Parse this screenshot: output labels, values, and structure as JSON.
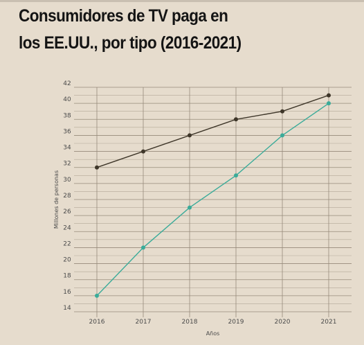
{
  "header": {
    "title_line1": "Consumidores de TV paga en",
    "title_line2": "los EE.UU., por tipo (2016-2021)"
  },
  "chart_data": {
    "type": "line",
    "title": "Consumidores de TV paga en los EE.UU., por tipo (2016-2021)",
    "xlabel": "Años",
    "ylabel": "Millones de personas",
    "x": [
      2016,
      2017,
      2018,
      2019,
      2020,
      2021
    ],
    "ylim": [
      14,
      42
    ],
    "yticks": [
      14,
      16,
      18,
      20,
      22,
      24,
      26,
      28,
      30,
      32,
      34,
      36,
      38,
      40,
      42
    ],
    "grid": true,
    "legend": "none",
    "series": [
      {
        "values": [
          32,
          34,
          36,
          38,
          39,
          41
        ],
        "color": "#3e3629"
      },
      {
        "values": [
          16,
          22,
          27,
          31,
          36,
          40
        ],
        "color": "#3aab99"
      }
    ]
  }
}
